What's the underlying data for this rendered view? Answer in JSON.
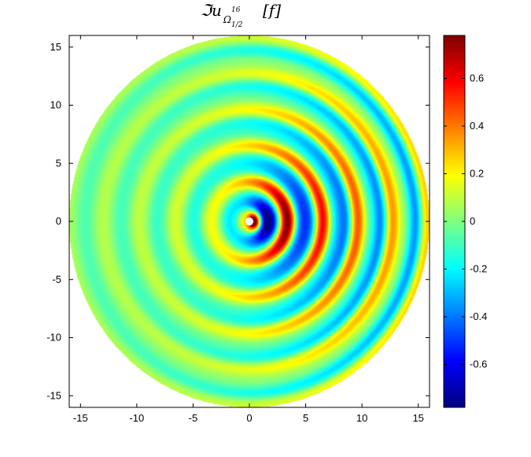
{
  "chart_data": {
    "type": "heatmap",
    "title": {
      "prefix": "ℑu",
      "subscript_base": "Ω",
      "subscript_sub": "1/2",
      "superscript": "16",
      "argument": "[f]"
    },
    "xlim": [
      -16,
      16
    ],
    "ylim": [
      -16,
      16
    ],
    "x_ticks": [
      -15,
      -10,
      -5,
      0,
      5,
      10,
      15
    ],
    "y_ticks": [
      -15,
      -10,
      -5,
      0,
      5,
      10,
      15
    ],
    "x_tick_labels": [
      "-15",
      "-10",
      "-5",
      "0",
      "5",
      "10",
      "15"
    ],
    "y_tick_labels": [
      "-15",
      "-10",
      "-5",
      "0",
      "5",
      "10",
      "15"
    ],
    "domain": {
      "shape": "disk",
      "radius": 16
    },
    "colorbar": {
      "range": [
        -0.78,
        0.78
      ],
      "ticks": [
        -0.6,
        -0.4,
        -0.2,
        0,
        0.2,
        0.4,
        0.6
      ],
      "tick_labels": [
        "-0.6",
        "-0.4",
        "-0.2",
        "0",
        "0.2",
        "0.4",
        "0.6"
      ],
      "colormap": "jet"
    },
    "field": {
      "description_model": "concentric ring oscillation about origin with forward scattering to +x",
      "ring_wavelength": 3.2,
      "peak_value": 0.78,
      "hole_radius": 0.35
    },
    "grid": false
  }
}
